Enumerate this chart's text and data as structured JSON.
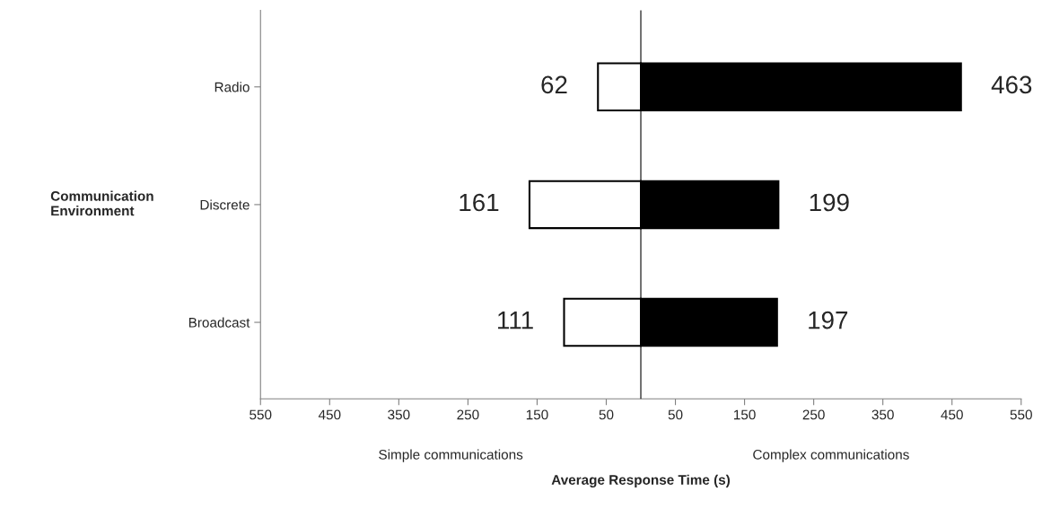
{
  "chart_data": {
    "type": "bar",
    "orientation": "horizontal",
    "categories": [
      "Radio",
      "Discrete",
      "Broadcast"
    ],
    "series": [
      {
        "color": "#ffffff",
        "base": [
          -62,
          -161,
          -111
        ],
        "values": [
          62,
          161,
          111
        ],
        "value_labels": [
          "62",
          "161",
          "111"
        ]
      },
      {
        "color": "#000000",
        "values": [
          463,
          199,
          197
        ],
        "value_labels": [
          "463",
          "199",
          "197"
        ]
      }
    ],
    "xlim": [
      -550,
      550
    ],
    "xticks": [
      {
        "value": -550,
        "label": "550"
      },
      {
        "value": -450,
        "label": "450"
      },
      {
        "value": -350,
        "label": "350"
      },
      {
        "value": -250,
        "label": "250"
      },
      {
        "value": -150,
        "label": "150"
      },
      {
        "value": -50,
        "label": "50"
      },
      50,
      150,
      250,
      350,
      450,
      550
    ],
    "xlabel": "Average Response Time (s)",
    "ylabel": "Communication\nEnvironment",
    "annotations": [
      "Simple communications",
      "Complex communications"
    ],
    "ref_lines": [
      {
        "axis": "x",
        "value": 0,
        "color": "#000000"
      }
    ],
    "grid": false,
    "legend": false
  }
}
